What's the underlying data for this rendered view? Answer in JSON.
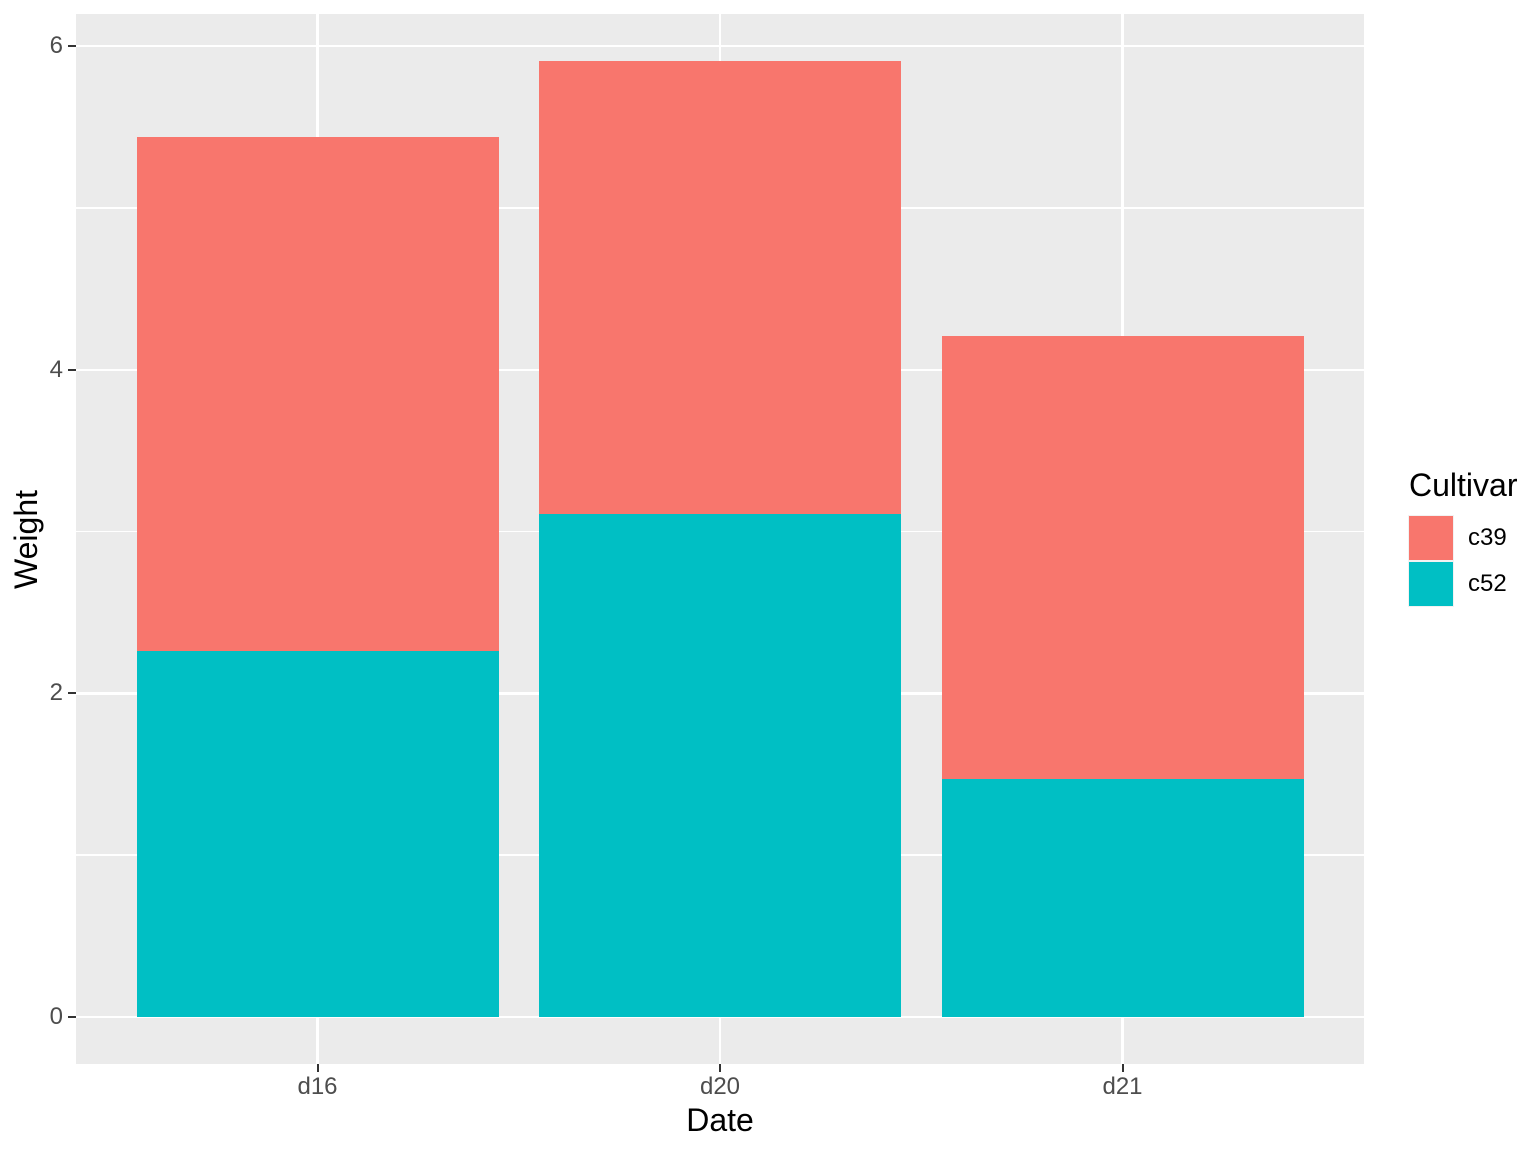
{
  "chart_data": {
    "type": "bar",
    "stacked": true,
    "title": "",
    "xlabel": "Date",
    "ylabel": "Weight",
    "categories": [
      "d16",
      "d20",
      "d21"
    ],
    "series": [
      {
        "name": "c39",
        "color": "#F8766D",
        "values": [
          3.18,
          2.8,
          2.74
        ]
      },
      {
        "name": "c52",
        "color": "#00BFC4",
        "values": [
          2.26,
          3.11,
          1.47
        ]
      }
    ],
    "stack_order_bottom_to_top": [
      "c52",
      "c39"
    ],
    "stacked_totals": [
      5.44,
      5.91,
      4.21
    ],
    "y_ticks": [
      0,
      2,
      4,
      6
    ],
    "y_tick_labels": [
      "0",
      "2",
      "4",
      "6"
    ],
    "y_minor_ticks": [
      1,
      3,
      5
    ],
    "ylim": [
      0,
      6
    ],
    "grid": "on",
    "legend_position": "right"
  },
  "legend": {
    "title": "Cultivar",
    "items": [
      {
        "label": "c39",
        "color": "#F8766D"
      },
      {
        "label": "c52",
        "color": "#00BFC4"
      }
    ]
  },
  "axes": {
    "x_title": "Date",
    "y_title": "Weight"
  },
  "theme": {
    "panel_bg": "#EBEBEB",
    "grid_color": "#FFFFFF",
    "axis_text_color": "#4D4D4D",
    "axis_title_color": "#000000",
    "tick_mark_color": "#333333",
    "legend_key_bg": "#F2F2F2",
    "plot_bg": "#FFFFFF"
  }
}
